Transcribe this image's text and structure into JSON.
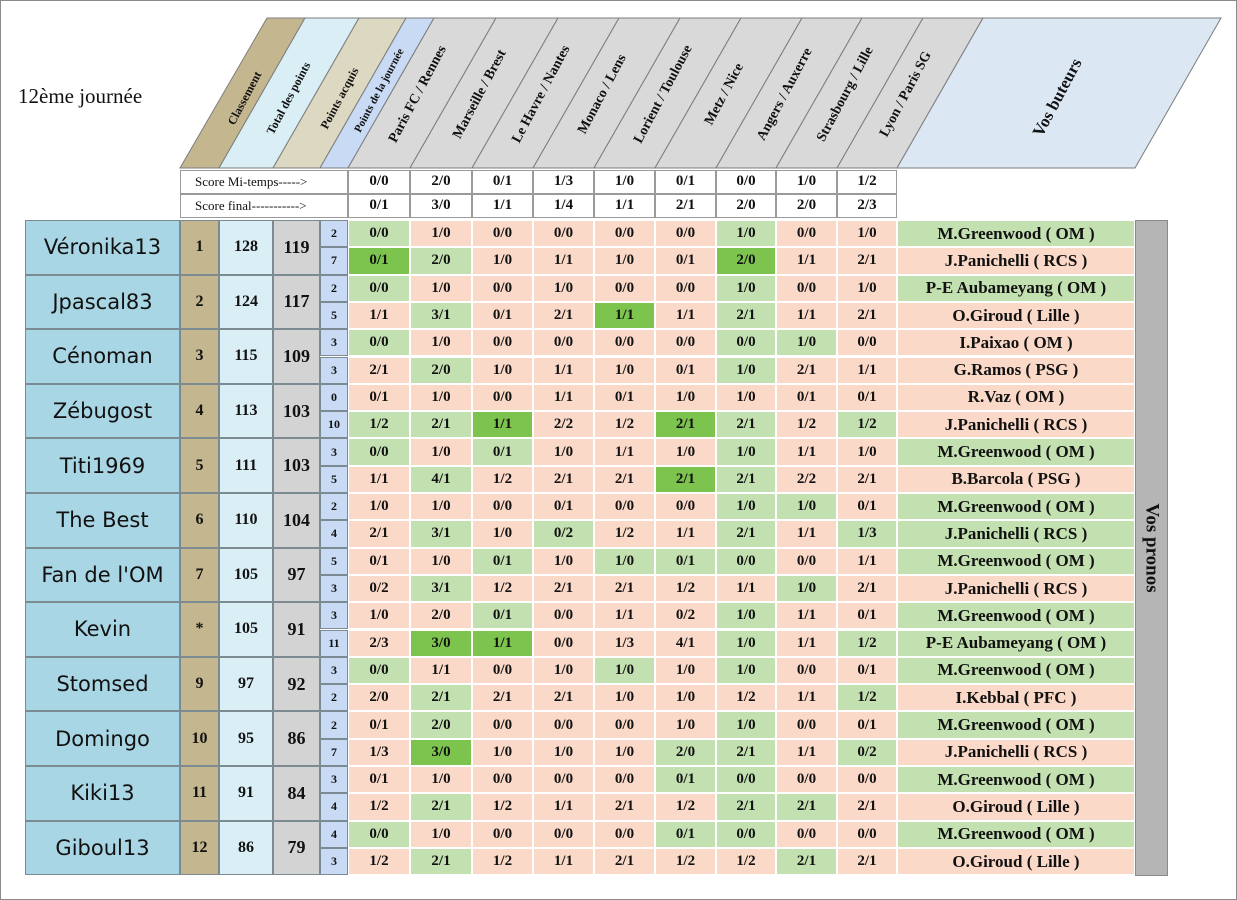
{
  "title": "12ème journée",
  "headers": {
    "classement": "Classement",
    "total": "Total des points",
    "acquis": "Points acquis",
    "journee": "Points de la journée",
    "buteurs": "Vos buteurs",
    "pronos": "Vos pronos"
  },
  "matches": [
    "Paris FC / Rennes",
    "Marseille / Brest",
    "Le Havre / Nantes",
    "Monaco / Lens",
    "Lorient / Toulouse",
    "Metz / Nice",
    "Angers / Auxerre",
    "Strasbourg / Lille",
    "Lyon / Paris SG"
  ],
  "score_rows": [
    {
      "label": "Score Mi-temps----->",
      "scores": [
        "0/0",
        "2/0",
        "0/1",
        "1/3",
        "1/0",
        "0/1",
        "0/0",
        "1/0",
        "1/2"
      ]
    },
    {
      "label": "Score final----------->",
      "scores": [
        "0/1",
        "3/0",
        "1/1",
        "1/4",
        "1/1",
        "2/1",
        "2/0",
        "2/0",
        "2/3"
      ]
    }
  ],
  "colors": {
    "name_bg": "#a9d6e4",
    "rank_bg": "#c4b78f",
    "total_bg": "#d9eef5",
    "acquis_bg": "#d3d3d3",
    "journee_bg": "#c8daf4",
    "cell_red": "#fbd9c8",
    "cell_green": "#c3e0b1",
    "cell_exact": "#7cc44d"
  },
  "players": [
    {
      "name": "Véronika13",
      "rank": "1",
      "total": "128",
      "acquis": "119",
      "rows": [
        {
          "pts": "2",
          "scores": [
            "0/0",
            "1/0",
            "0/0",
            "0/0",
            "0/0",
            "0/0",
            "1/0",
            "0/0",
            "1/0"
          ],
          "colors": [
            "g",
            "r",
            "r",
            "r",
            "r",
            "r",
            "g",
            "r",
            "r"
          ],
          "scorer": "M.Greenwood ( OM )",
          "scorer_color": "g"
        },
        {
          "pts": "7",
          "scores": [
            "0/1",
            "2/0",
            "1/0",
            "1/1",
            "1/0",
            "0/1",
            "2/0",
            "1/1",
            "2/1"
          ],
          "colors": [
            "b",
            "g",
            "r",
            "r",
            "r",
            "r",
            "b",
            "r",
            "r"
          ],
          "scorer": "J.Panichelli ( RCS )",
          "scorer_color": "r"
        }
      ]
    },
    {
      "name": "Jpascal83",
      "rank": "2",
      "total": "124",
      "acquis": "117",
      "rows": [
        {
          "pts": "2",
          "scores": [
            "0/0",
            "1/0",
            "0/0",
            "1/0",
            "0/0",
            "0/0",
            "1/0",
            "0/0",
            "1/0"
          ],
          "colors": [
            "g",
            "r",
            "r",
            "r",
            "r",
            "r",
            "g",
            "r",
            "r"
          ],
          "scorer": "P-E Aubameyang ( OM )",
          "scorer_color": "g"
        },
        {
          "pts": "5",
          "scores": [
            "1/1",
            "3/1",
            "0/1",
            "2/1",
            "1/1",
            "1/1",
            "2/1",
            "1/1",
            "2/1"
          ],
          "colors": [
            "r",
            "g",
            "r",
            "r",
            "b",
            "r",
            "g",
            "r",
            "r"
          ],
          "scorer": "O.Giroud ( Lille )",
          "scorer_color": "r"
        }
      ]
    },
    {
      "name": "Cénoman",
      "rank": "3",
      "total": "115",
      "acquis": "109",
      "rows": [
        {
          "pts": "3",
          "scores": [
            "0/0",
            "1/0",
            "0/0",
            "0/0",
            "0/0",
            "0/0",
            "0/0",
            "1/0",
            "0/0"
          ],
          "colors": [
            "g",
            "r",
            "r",
            "r",
            "r",
            "r",
            "g",
            "g",
            "r"
          ],
          "scorer": "I.Paixao ( OM )",
          "scorer_color": "r"
        },
        {
          "pts": "3",
          "scores": [
            "2/1",
            "2/0",
            "1/0",
            "1/1",
            "1/0",
            "0/1",
            "1/0",
            "2/1",
            "1/1"
          ],
          "colors": [
            "r",
            "g",
            "r",
            "r",
            "r",
            "r",
            "g",
            "r",
            "r"
          ],
          "scorer": "G.Ramos ( PSG )",
          "scorer_color": "r"
        }
      ]
    },
    {
      "name": "Zébugost",
      "rank": "4",
      "total": "113",
      "acquis": "103",
      "rows": [
        {
          "pts": "0",
          "scores": [
            "0/1",
            "1/0",
            "0/0",
            "1/1",
            "0/1",
            "1/0",
            "1/0",
            "0/1",
            "0/1"
          ],
          "colors": [
            "r",
            "r",
            "r",
            "r",
            "r",
            "r",
            "r",
            "r",
            "r"
          ],
          "scorer": "R.Vaz ( OM )",
          "scorer_color": "r"
        },
        {
          "pts": "10",
          "scores": [
            "1/2",
            "2/1",
            "1/1",
            "2/2",
            "1/2",
            "2/1",
            "2/1",
            "1/2",
            "1/2"
          ],
          "colors": [
            "g",
            "g",
            "b",
            "r",
            "r",
            "b",
            "g",
            "r",
            "g"
          ],
          "scorer": "J.Panichelli ( RCS )",
          "scorer_color": "r"
        }
      ]
    },
    {
      "name": "Titi1969",
      "rank": "5",
      "total": "111",
      "acquis": "103",
      "rows": [
        {
          "pts": "3",
          "scores": [
            "0/0",
            "1/0",
            "0/1",
            "1/0",
            "1/1",
            "1/0",
            "1/0",
            "1/1",
            "1/0"
          ],
          "colors": [
            "g",
            "r",
            "g",
            "r",
            "r",
            "r",
            "g",
            "r",
            "r"
          ],
          "scorer": "M.Greenwood ( OM )",
          "scorer_color": "g"
        },
        {
          "pts": "5",
          "scores": [
            "1/1",
            "4/1",
            "1/2",
            "2/1",
            "2/1",
            "2/1",
            "2/1",
            "2/2",
            "2/1"
          ],
          "colors": [
            "r",
            "g",
            "r",
            "r",
            "r",
            "b",
            "g",
            "r",
            "r"
          ],
          "scorer": "B.Barcola ( PSG )",
          "scorer_color": "r"
        }
      ]
    },
    {
      "name": "The Best",
      "rank": "6",
      "total": "110",
      "acquis": "104",
      "rows": [
        {
          "pts": "2",
          "scores": [
            "1/0",
            "1/0",
            "0/0",
            "0/1",
            "0/0",
            "0/0",
            "1/0",
            "1/0",
            "0/1"
          ],
          "colors": [
            "r",
            "r",
            "r",
            "r",
            "r",
            "r",
            "g",
            "g",
            "r"
          ],
          "scorer": "M.Greenwood ( OM )",
          "scorer_color": "g"
        },
        {
          "pts": "4",
          "scores": [
            "2/1",
            "3/1",
            "1/0",
            "0/2",
            "1/2",
            "1/1",
            "2/1",
            "1/1",
            "1/3"
          ],
          "colors": [
            "r",
            "g",
            "r",
            "g",
            "r",
            "r",
            "g",
            "r",
            "g"
          ],
          "scorer": "J.Panichelli ( RCS )",
          "scorer_color": "g"
        }
      ]
    },
    {
      "name": "Fan de l'OM",
      "rank": "7",
      "total": "105",
      "acquis": "97",
      "rows": [
        {
          "pts": "5",
          "scores": [
            "0/1",
            "1/0",
            "0/1",
            "1/0",
            "1/0",
            "0/1",
            "0/0",
            "0/0",
            "1/1"
          ],
          "colors": [
            "r",
            "r",
            "g",
            "r",
            "g",
            "g",
            "g",
            "r",
            "r"
          ],
          "scorer": "M.Greenwood ( OM )",
          "scorer_color": "g"
        },
        {
          "pts": "3",
          "scores": [
            "0/2",
            "3/1",
            "1/2",
            "2/1",
            "2/1",
            "1/2",
            "1/1",
            "1/0",
            "2/1"
          ],
          "colors": [
            "r",
            "g",
            "r",
            "r",
            "r",
            "r",
            "r",
            "g",
            "r"
          ],
          "scorer": "J.Panichelli ( RCS )",
          "scorer_color": "r"
        }
      ]
    },
    {
      "name": "Kevin",
      "rank": "*",
      "total": "105",
      "acquis": "91",
      "rows": [
        {
          "pts": "3",
          "scores": [
            "1/0",
            "2/0",
            "0/1",
            "0/0",
            "1/1",
            "0/2",
            "1/0",
            "1/1",
            "0/1"
          ],
          "colors": [
            "r",
            "r",
            "g",
            "r",
            "r",
            "r",
            "g",
            "r",
            "r"
          ],
          "scorer": "M.Greenwood ( OM )",
          "scorer_color": "g"
        },
        {
          "pts": "11",
          "scores": [
            "2/3",
            "3/0",
            "1/1",
            "0/0",
            "1/3",
            "4/1",
            "1/0",
            "1/1",
            "1/2"
          ],
          "colors": [
            "r",
            "b",
            "b",
            "r",
            "r",
            "r",
            "g",
            "r",
            "g"
          ],
          "scorer": "P-E Aubameyang ( OM )",
          "scorer_color": "g"
        }
      ]
    },
    {
      "name": "Stomsed",
      "rank": "9",
      "total": "97",
      "acquis": "92",
      "rows": [
        {
          "pts": "3",
          "scores": [
            "0/0",
            "1/1",
            "0/0",
            "1/0",
            "1/0",
            "1/0",
            "1/0",
            "0/0",
            "0/1"
          ],
          "colors": [
            "g",
            "r",
            "r",
            "r",
            "g",
            "r",
            "g",
            "r",
            "r"
          ],
          "scorer": "M.Greenwood ( OM )",
          "scorer_color": "g"
        },
        {
          "pts": "2",
          "scores": [
            "2/0",
            "2/1",
            "2/1",
            "2/1",
            "1/0",
            "1/0",
            "1/2",
            "1/1",
            "1/2"
          ],
          "colors": [
            "r",
            "g",
            "r",
            "r",
            "r",
            "r",
            "r",
            "r",
            "g"
          ],
          "scorer": "I.Kebbal ( PFC )",
          "scorer_color": "r"
        }
      ]
    },
    {
      "name": "Domingo",
      "rank": "10",
      "total": "95",
      "acquis": "86",
      "rows": [
        {
          "pts": "2",
          "scores": [
            "0/1",
            "2/0",
            "0/0",
            "0/0",
            "0/0",
            "1/0",
            "1/0",
            "0/0",
            "0/1"
          ],
          "colors": [
            "r",
            "g",
            "r",
            "r",
            "r",
            "r",
            "g",
            "r",
            "r"
          ],
          "scorer": "M.Greenwood ( OM )",
          "scorer_color": "g"
        },
        {
          "pts": "7",
          "scores": [
            "1/3",
            "3/0",
            "1/0",
            "1/0",
            "1/0",
            "2/0",
            "2/1",
            "1/1",
            "0/2"
          ],
          "colors": [
            "r",
            "b",
            "r",
            "r",
            "r",
            "g",
            "g",
            "r",
            "g"
          ],
          "scorer": "J.Panichelli ( RCS )",
          "scorer_color": "r"
        }
      ]
    },
    {
      "name": "Kiki13",
      "rank": "11",
      "total": "91",
      "acquis": "84",
      "rows": [
        {
          "pts": "3",
          "scores": [
            "0/1",
            "1/0",
            "0/0",
            "0/0",
            "0/0",
            "0/1",
            "0/0",
            "0/0",
            "0/0"
          ],
          "colors": [
            "r",
            "r",
            "r",
            "r",
            "r",
            "g",
            "g",
            "r",
            "r"
          ],
          "scorer": "M.Greenwood ( OM )",
          "scorer_color": "g"
        },
        {
          "pts": "4",
          "scores": [
            "1/2",
            "2/1",
            "1/2",
            "1/1",
            "2/1",
            "1/2",
            "2/1",
            "2/1",
            "2/1"
          ],
          "colors": [
            "r",
            "g",
            "r",
            "r",
            "r",
            "r",
            "g",
            "g",
            "r"
          ],
          "scorer": "O.Giroud ( Lille )",
          "scorer_color": "r"
        }
      ]
    },
    {
      "name": "Giboul13",
      "rank": "12",
      "total": "86",
      "acquis": "79",
      "rows": [
        {
          "pts": "4",
          "scores": [
            "0/0",
            "1/0",
            "0/0",
            "0/0",
            "0/0",
            "0/1",
            "0/0",
            "0/0",
            "0/0"
          ],
          "colors": [
            "g",
            "r",
            "r",
            "r",
            "r",
            "g",
            "g",
            "r",
            "r"
          ],
          "scorer": "M.Greenwood ( OM )",
          "scorer_color": "g"
        },
        {
          "pts": "3",
          "scores": [
            "1/2",
            "2/1",
            "1/2",
            "1/1",
            "2/1",
            "1/2",
            "1/2",
            "2/1",
            "2/1"
          ],
          "colors": [
            "r",
            "g",
            "r",
            "r",
            "r",
            "r",
            "r",
            "g",
            "r"
          ],
          "scorer": "O.Giroud ( Lille )",
          "scorer_color": "r"
        }
      ]
    }
  ]
}
